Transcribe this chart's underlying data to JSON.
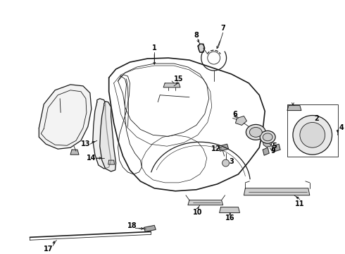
{
  "background_color": "#ffffff",
  "line_color": "#1a1a1a",
  "label_color": "#000000",
  "label_fontsize": 7.0,
  "fig_width": 4.9,
  "fig_height": 3.6,
  "dpi": 100
}
